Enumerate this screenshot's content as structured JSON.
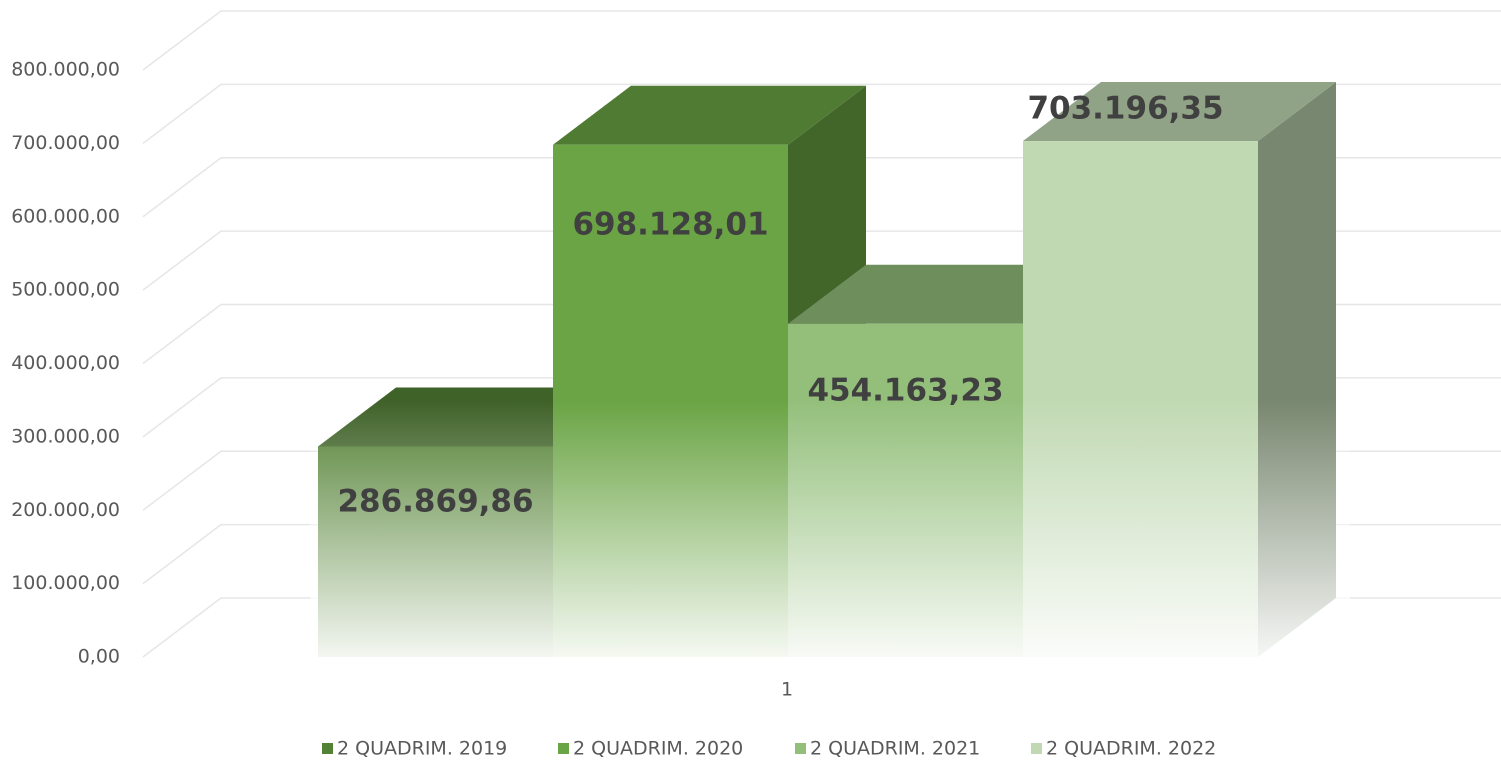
{
  "chart_data": {
    "type": "bar3d",
    "categories": [
      "1"
    ],
    "series": [
      {
        "name": "2 QUADRIM. 2019",
        "color": "#548235",
        "values": [
          286869.86
        ],
        "value_labels": [
          "286.869,86"
        ]
      },
      {
        "name": "2 QUADRIM. 2020",
        "color": "#6aa444",
        "values": [
          698128.01
        ],
        "value_labels": [
          "698.128,01"
        ]
      },
      {
        "name": "2 QUADRIM. 2021",
        "color": "#93bf7b",
        "values": [
          454163.23
        ],
        "value_labels": [
          "454.163,23"
        ]
      },
      {
        "name": "2 QUADRIM. 2022",
        "color": "#c1d9b3",
        "values": [
          703196.35
        ],
        "value_labels": [
          "703.196,35"
        ]
      }
    ],
    "ylim": [
      0,
      800000
    ],
    "yticks": [
      {
        "value": 0,
        "label": "0,00"
      },
      {
        "value": 100000,
        "label": "100.000,00"
      },
      {
        "value": 200000,
        "label": "200.000,00"
      },
      {
        "value": 300000,
        "label": "300.000,00"
      },
      {
        "value": 400000,
        "label": "400.000,00"
      },
      {
        "value": 500000,
        "label": "500.000,00"
      },
      {
        "value": 600000,
        "label": "600.000,00"
      },
      {
        "value": 700000,
        "label": "700.000,00"
      },
      {
        "value": 800000,
        "label": "800.000,00"
      }
    ],
    "grid": true,
    "legend": "bottom"
  }
}
